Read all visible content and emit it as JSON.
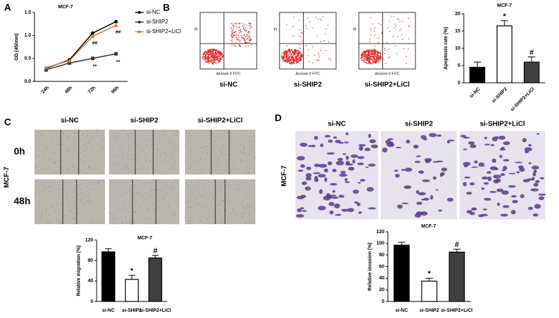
{
  "panels": [
    "A",
    "B",
    "C",
    "D"
  ],
  "flow": {
    "x_label": "Annexin V FITC",
    "y_label": "PI",
    "labels": [
      "si-NC",
      "si-SHIP2",
      "si-SHIP2+LiCl"
    ]
  },
  "wound": {
    "labels": [
      "si-NC",
      "si-SHIP2",
      "si-SHIP2+LiCl"
    ],
    "rows": [
      "0h",
      "48h"
    ],
    "cell_line": "MCF-7"
  },
  "transwell": {
    "labels": [
      "si-NC",
      "si-SHIP2",
      "si-SHIP2+LiCl"
    ],
    "cell_line": "MCF-7"
  },
  "chart_data": [
    {
      "type": "line",
      "title": "MCF-7",
      "y_label": "OD (450nm)",
      "categories": [
        "24h",
        "48h",
        "72h",
        "96h"
      ],
      "ylim": [
        0,
        1.5
      ],
      "yticks": [
        {
          "value": 0,
          "label": "0.0"
        },
        {
          "value": 0.5,
          "label": "0.5"
        },
        {
          "value": 1,
          "label": "1.0"
        },
        {
          "value": 1.5,
          "label": "1.5"
        }
      ],
      "legend": "right",
      "series": [
        {
          "name": "si-NC",
          "color": "#000000",
          "values": [
            0.28,
            0.47,
            1.05,
            1.3
          ],
          "annotations": [
            null,
            null,
            null,
            null
          ]
        },
        {
          "name": "si-SHIP2",
          "color": "#333333",
          "values": [
            0.25,
            0.4,
            0.5,
            0.6
          ],
          "annotations": [
            null,
            null,
            "**",
            "**"
          ]
        },
        {
          "name": "si-SHIP2+LiCl",
          "color": "#e87722",
          "values": [
            0.3,
            0.45,
            0.98,
            1.22
          ],
          "annotations": [
            null,
            null,
            "##",
            "##"
          ]
        }
      ]
    },
    {
      "type": "bar",
      "title": "MCF-7",
      "y_label": "Apoptosis rate (%)",
      "categories": [
        "si-NC",
        "si-SHIP2",
        "si-SHIP2+LiCl"
      ],
      "values": [
        4.5,
        16.5,
        6
      ],
      "errors": [
        1.5,
        1.5,
        1.5
      ],
      "annotations": [
        null,
        "*",
        "#"
      ],
      "colors": [
        "#000000",
        "#ffffff",
        "#404040"
      ],
      "ylim": [
        0,
        20
      ],
      "yticks": [
        0,
        5,
        10,
        15,
        20
      ]
    },
    {
      "type": "bar",
      "title": "MCF-7",
      "y_label": "Relative migration (%)",
      "categories": [
        "si-NC",
        "si-SHIP2",
        "si-SHIP2+LiCl"
      ],
      "values": [
        97,
        43,
        85
      ],
      "errors": [
        6,
        8,
        5
      ],
      "annotations": [
        null,
        "*",
        "#"
      ],
      "colors": [
        "#000000",
        "#ffffff",
        "#404040"
      ],
      "ylim": [
        0,
        120
      ],
      "yticks": [
        0,
        40,
        80,
        120
      ]
    },
    {
      "type": "bar",
      "title": "MCF-7",
      "y_label": "Relative invasion (%)",
      "categories": [
        "si-NC",
        "si-SHIP2",
        "si-SHIP2+LiCl"
      ],
      "values": [
        97,
        35,
        85
      ],
      "errors": [
        5,
        5,
        5
      ],
      "annotations": [
        null,
        "*",
        "#"
      ],
      "colors": [
        "#000000",
        "#ffffff",
        "#404040"
      ],
      "ylim": [
        0,
        120
      ],
      "yticks": [
        0,
        20,
        40,
        60,
        80,
        100,
        120
      ]
    }
  ]
}
